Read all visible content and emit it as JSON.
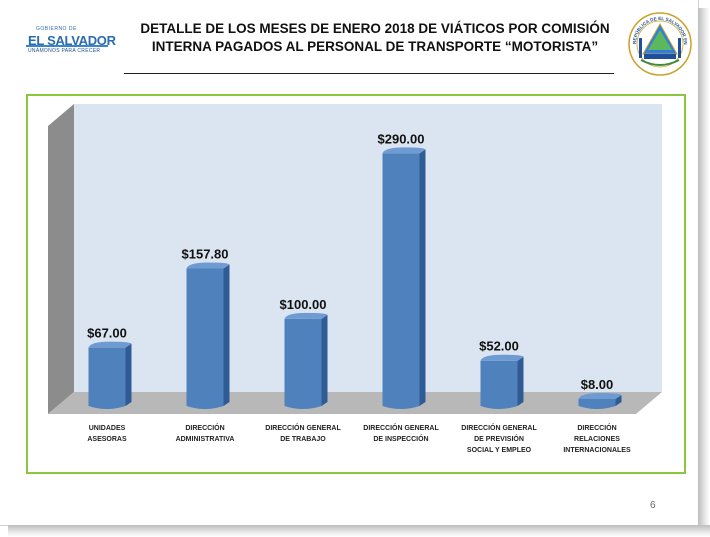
{
  "header": {
    "logo": {
      "line1": "GOBIERNO DE",
      "line2": "EL SALVADOR",
      "line3": "UNÁMONOS PARA CRECER"
    },
    "title_line1": "DETALLE DE LOS MESES DE ENERO  2018  DE VIÁTICOS POR COMISIÓN",
    "title_line2": "INTERNA PAGADOS AL PERSONAL DE TRANSPORTE “MOTORISTA”",
    "seal": {
      "text": "REPÚBLICA DE EL SALVADOR EN LA AMÉRICA CENTRAL",
      "icon": "national-seal-icon"
    }
  },
  "chart_data": {
    "type": "bar",
    "categories": [
      [
        "UNIDADES",
        "ASESORAS"
      ],
      [
        "DIRECCIÓN",
        "ADMINISTRATIVA"
      ],
      [
        "DIRECCIÓN GENERAL",
        "DE TRABAJO"
      ],
      [
        "DIRECCIÓN GENERAL",
        "DE INSPECCIÓN"
      ],
      [
        "DIRECCIÓN GENERAL",
        "DE PREVISIÓN",
        "SOCIAL Y EMPLEO"
      ],
      [
        "DIRECCIÓN",
        "RELACIONES",
        "INTERNACIONALES"
      ]
    ],
    "values": [
      67.0,
      157.8,
      100.0,
      290.0,
      52.0,
      8.0
    ],
    "data_labels": [
      "$67.00",
      "$157.80",
      "$100.00",
      "$290.00",
      "$52.00",
      "$8.00"
    ],
    "ylim": [
      0,
      310
    ],
    "grid": false,
    "legend": "none",
    "style": "3d-cylinder",
    "colors": {
      "bar": "#4f81bd",
      "bar_dark": "#2f5c94",
      "bar_light": "#6f9bd3",
      "wall": "#dbe5f1",
      "side_wall": "#8c8c8c",
      "floor": "#b8b8b8",
      "frame": "#8cc63f"
    }
  },
  "footer": {
    "page_number": "6"
  }
}
